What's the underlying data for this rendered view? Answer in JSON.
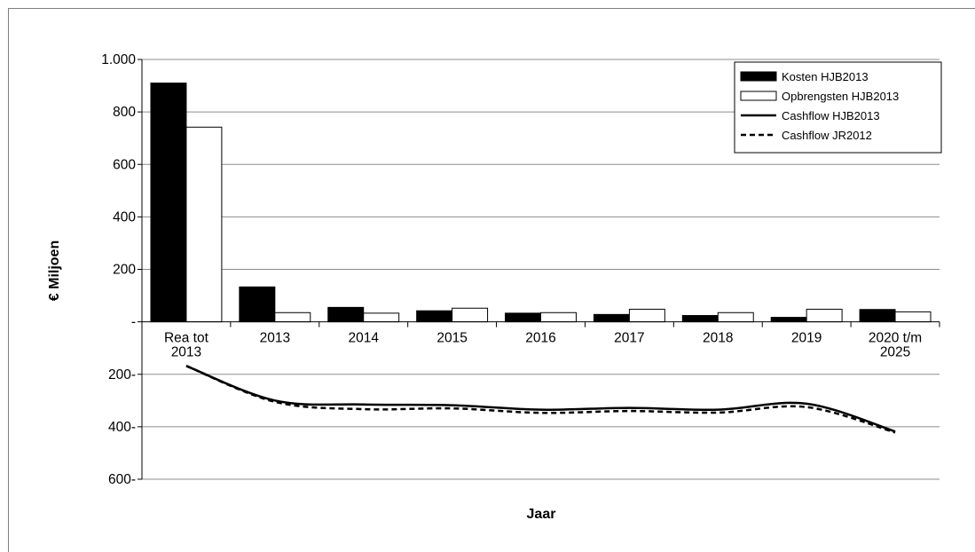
{
  "chart_data": {
    "type": "bar",
    "categories": [
      [
        "Rea tot",
        "2013"
      ],
      [
        "2013"
      ],
      [
        "2014"
      ],
      [
        "2015"
      ],
      [
        "2016"
      ],
      [
        "2017"
      ],
      [
        "2018"
      ],
      [
        "2019"
      ],
      [
        "2020 t/m",
        "2025"
      ]
    ],
    "ylabel": "€ Miljoen",
    "xlabel": "Jaar",
    "ylim": [
      -600,
      1000
    ],
    "yticks": [
      {
        "value": 1000,
        "label": "1.000"
      },
      {
        "value": 800,
        "label": "800"
      },
      {
        "value": 600,
        "label": "600"
      },
      {
        "value": 400,
        "label": "400"
      },
      {
        "value": 200,
        "label": "200"
      },
      {
        "value": 0,
        "label": "-"
      },
      {
        "value": -200,
        "label": "200-"
      },
      {
        "value": -400,
        "label": "400-"
      },
      {
        "value": -600,
        "label": "600-"
      }
    ],
    "grid": true,
    "legend_position": "top-right",
    "series": [
      {
        "name": "Kosten HJB2013",
        "kind": "bar",
        "color": "#000000",
        "values": [
          910,
          133,
          55,
          42,
          33,
          28,
          24,
          17,
          47
        ]
      },
      {
        "name": "Opbrengsten HJB2013",
        "kind": "bar",
        "color": "#ffffff",
        "values": [
          742,
          35,
          33,
          52,
          35,
          48,
          35,
          48,
          38
        ]
      },
      {
        "name": "Cashflow HJB2013",
        "kind": "line",
        "style": "solid",
        "color": "#000000",
        "values": [
          -168,
          -300,
          -315,
          -318,
          -335,
          -328,
          -335,
          -312,
          -418
        ]
      },
      {
        "name": "Cashflow JR2012",
        "kind": "line",
        "style": "dashed",
        "color": "#000000",
        "values": [
          -168,
          -305,
          -333,
          -330,
          -347,
          -340,
          -346,
          -325,
          -422
        ]
      }
    ]
  }
}
